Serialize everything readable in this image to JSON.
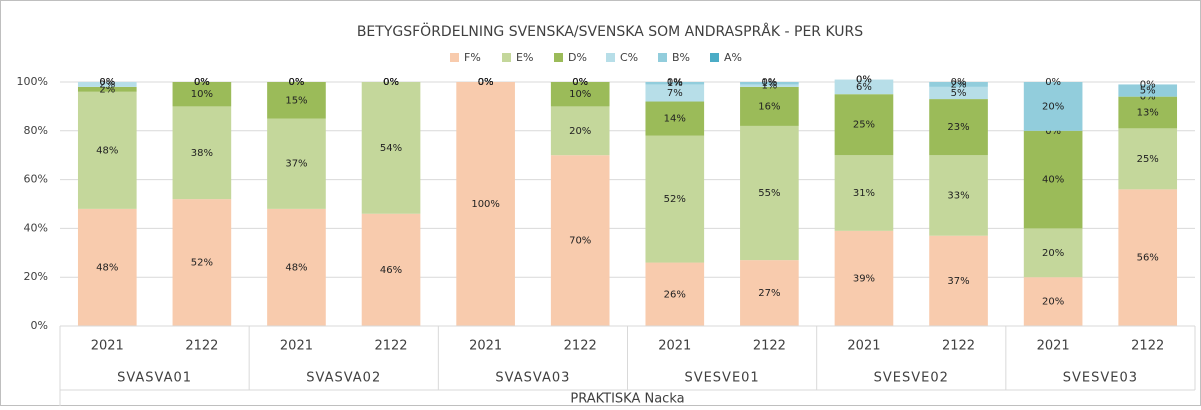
{
  "chart_data": {
    "type": "stacked_bar",
    "title": "BETYGSFÖRDELNING SVENSKA/SVENSKA SOM ANDRASPRÅK - PER KURS",
    "categories": [
      "2021",
      "2122",
      "2021",
      "2122",
      "2021",
      "2122",
      "2021",
      "2122",
      "2021",
      "2122",
      "2021",
      "2122"
    ],
    "groups": [
      "SVASVA01",
      "SVASVA02",
      "SVASVA03",
      "SVESVE01",
      "SVESVE02",
      "SVESVE03"
    ],
    "supergroup": "PRAKTISKA Nacka",
    "series": [
      {
        "name": "F%",
        "color": "#f8cbad",
        "values": [
          48,
          52,
          48,
          46,
          100,
          70,
          26,
          27,
          39,
          37,
          20,
          56
        ],
        "value_labels": [
          "48%",
          "52%",
          "48%",
          "46%",
          "100%",
          "70%",
          "26%",
          "27%",
          "39%",
          "37%",
          "20%",
          "56%"
        ]
      },
      {
        "name": "E%",
        "color": "#c4d79b",
        "values": [
          48,
          38,
          37,
          54,
          0,
          20,
          52,
          55,
          31,
          33,
          20,
          25
        ],
        "value_labels": [
          "48%",
          "38%",
          "37%",
          "54%",
          "0%",
          "20%",
          "52%",
          "55%",
          "31%",
          "33%",
          "20%",
          "25%"
        ]
      },
      {
        "name": "D%",
        "color": "#9bbb59",
        "values": [
          2,
          10,
          15,
          0,
          0,
          10,
          14,
          16,
          25,
          23,
          40,
          13
        ],
        "value_labels": [
          "2%",
          "10%",
          "15%",
          "0%",
          "0%",
          "10%",
          "14%",
          "16%",
          "25%",
          "23%",
          "40%",
          "13%"
        ]
      },
      {
        "name": "C%",
        "color": "#b7dee8",
        "values": [
          2,
          0,
          0,
          0,
          0,
          0,
          7,
          1,
          6,
          5,
          0,
          0
        ],
        "value_labels": [
          "2%",
          "0%",
          "0%",
          "0%",
          "0%",
          "0%",
          "7%",
          "1%",
          "6%",
          "5%",
          "0%",
          "0%"
        ]
      },
      {
        "name": "B%",
        "color": "#92cddc",
        "values": [
          0,
          0,
          0,
          0,
          0,
          0,
          1,
          1,
          0,
          2,
          20,
          5
        ],
        "value_labels": [
          "0%",
          "0%",
          "0%",
          "0%",
          "0%",
          "0%",
          "1%",
          "1%",
          "0%",
          "2%",
          "20%",
          "5%"
        ]
      },
      {
        "name": "A%",
        "color": "#4bacc6",
        "values": [
          0,
          0,
          0,
          0,
          0,
          0,
          0,
          0,
          0,
          0,
          0,
          0
        ],
        "value_labels": [
          "0%",
          "0%",
          "0%",
          "0%",
          "0%",
          "0%",
          "0%",
          "0%",
          "0%",
          "0%",
          "0%",
          "0%"
        ]
      }
    ],
    "ylim": [
      0,
      100
    ],
    "yticks": [
      {
        "value": 0,
        "label": "0%"
      },
      {
        "value": 20,
        "label": "20%"
      },
      {
        "value": 40,
        "label": "40%"
      },
      {
        "value": 60,
        "label": "60%"
      },
      {
        "value": 80,
        "label": "80%"
      },
      {
        "value": 100,
        "label": "100%"
      }
    ],
    "grid": true
  }
}
